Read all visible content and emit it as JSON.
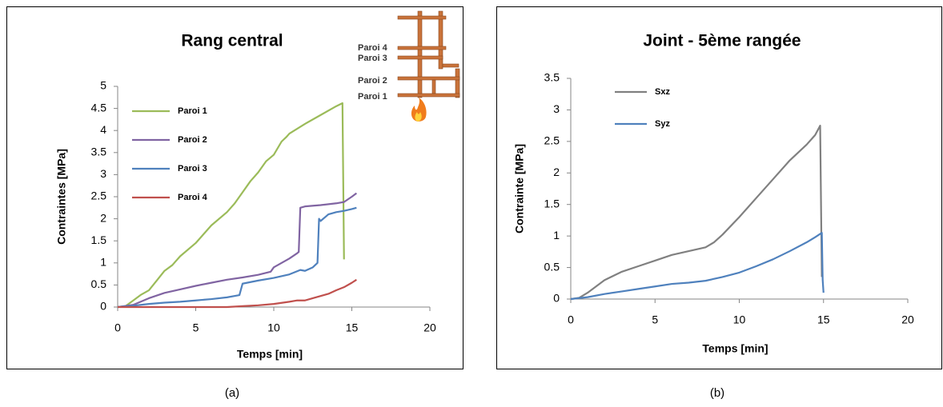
{
  "chart_data": [
    {
      "type": "line",
      "title": "Rang central",
      "xlabel": "Temps [min]",
      "ylabel": "Contraintes [MPa]",
      "caption": "(a)",
      "annotations": [
        "Paroi 4",
        "Paroi 3",
        "Paroi 2",
        "Paroi 1"
      ],
      "xlim": [
        0,
        20
      ],
      "xticks": [
        0,
        5,
        10,
        15,
        20
      ],
      "ylim": [
        0,
        5
      ],
      "yticks": [
        0,
        0.5,
        1,
        1.5,
        2,
        2.5,
        3,
        3.5,
        4,
        4.5,
        5
      ],
      "series": [
        {
          "name": "Paroi 1",
          "color": "#9bbb59",
          "x": [
            0,
            0.5,
            1,
            1.5,
            2,
            2.5,
            3,
            3.5,
            4,
            5,
            6,
            7,
            7.5,
            8,
            8.5,
            9,
            9.5,
            10,
            10.5,
            10.8,
            11,
            12,
            13,
            14,
            14.4,
            14.5
          ],
          "values": [
            0,
            0.02,
            0.15,
            0.28,
            0.38,
            0.6,
            0.82,
            0.95,
            1.15,
            1.45,
            1.85,
            2.15,
            2.35,
            2.6,
            2.85,
            3.05,
            3.3,
            3.45,
            3.75,
            3.85,
            3.93,
            4.15,
            4.35,
            4.55,
            4.62,
            1.08
          ]
        },
        {
          "name": "Paroi 2",
          "color": "#8064a2",
          "x": [
            0,
            1,
            2,
            3,
            4,
            5,
            6,
            7,
            8,
            9,
            9.8,
            10,
            11,
            11.5,
            11.6,
            11.7,
            12,
            13,
            14,
            14.5,
            15,
            15.3
          ],
          "values": [
            0,
            0.05,
            0.2,
            0.32,
            0.4,
            0.48,
            0.55,
            0.62,
            0.67,
            0.73,
            0.8,
            0.9,
            1.1,
            1.22,
            1.25,
            2.25,
            2.28,
            2.31,
            2.35,
            2.38,
            2.5,
            2.58
          ]
        },
        {
          "name": "Paroi 3",
          "color": "#4f81bd",
          "x": [
            0,
            1,
            2,
            3,
            4,
            5,
            6,
            7,
            7.8,
            8,
            9,
            10,
            11,
            11.7,
            12,
            12.5,
            12.8,
            12.9,
            13,
            13.5,
            14,
            14.5,
            15,
            15.3
          ],
          "values": [
            0,
            0.03,
            0.07,
            0.1,
            0.12,
            0.15,
            0.18,
            0.22,
            0.27,
            0.53,
            0.6,
            0.66,
            0.74,
            0.84,
            0.82,
            0.9,
            1.0,
            2.0,
            1.95,
            2.1,
            2.15,
            2.18,
            2.22,
            2.25
          ]
        },
        {
          "name": "Paroi 4",
          "color": "#c0504d",
          "x": [
            0,
            7,
            8,
            9,
            10,
            11,
            11.5,
            12,
            12.5,
            13,
            13.5,
            14,
            14.5,
            15,
            15.3
          ],
          "values": [
            0,
            0,
            0.02,
            0.04,
            0.07,
            0.12,
            0.15,
            0.15,
            0.2,
            0.25,
            0.3,
            0.38,
            0.45,
            0.55,
            0.62
          ]
        }
      ]
    },
    {
      "type": "line",
      "title": "Joint - 5ème rangée",
      "xlabel": "Temps [min]",
      "ylabel": "Contrainte [MPa]",
      "caption": "(b)",
      "xlim": [
        0,
        20
      ],
      "xticks": [
        0,
        5,
        10,
        15,
        20
      ],
      "ylim": [
        0,
        3.5
      ],
      "yticks": [
        0,
        0.5,
        1,
        1.5,
        2,
        2.5,
        3,
        3.5
      ],
      "series": [
        {
          "name": "Sxz",
          "color": "#808080",
          "x": [
            0,
            0.5,
            1,
            1.5,
            2,
            3,
            4,
            5,
            6,
            7,
            8,
            8.5,
            9,
            10,
            11,
            12,
            13,
            14,
            14.5,
            14.8,
            14.9
          ],
          "values": [
            0,
            0.02,
            0.1,
            0.2,
            0.3,
            0.43,
            0.52,
            0.61,
            0.7,
            0.76,
            0.82,
            0.9,
            1.02,
            1.3,
            1.6,
            1.9,
            2.2,
            2.45,
            2.6,
            2.75,
            0.35
          ]
        },
        {
          "name": "Syz",
          "color": "#4f81bd",
          "x": [
            0,
            1,
            2,
            3,
            4,
            5,
            6,
            7,
            8,
            9,
            10,
            11,
            12,
            13,
            14,
            14.5,
            14.9,
            14.95,
            15
          ],
          "values": [
            0,
            0.03,
            0.08,
            0.12,
            0.16,
            0.2,
            0.24,
            0.26,
            0.29,
            0.35,
            0.42,
            0.52,
            0.63,
            0.76,
            0.9,
            0.98,
            1.05,
            0.3,
            0.1
          ]
        }
      ]
    }
  ]
}
